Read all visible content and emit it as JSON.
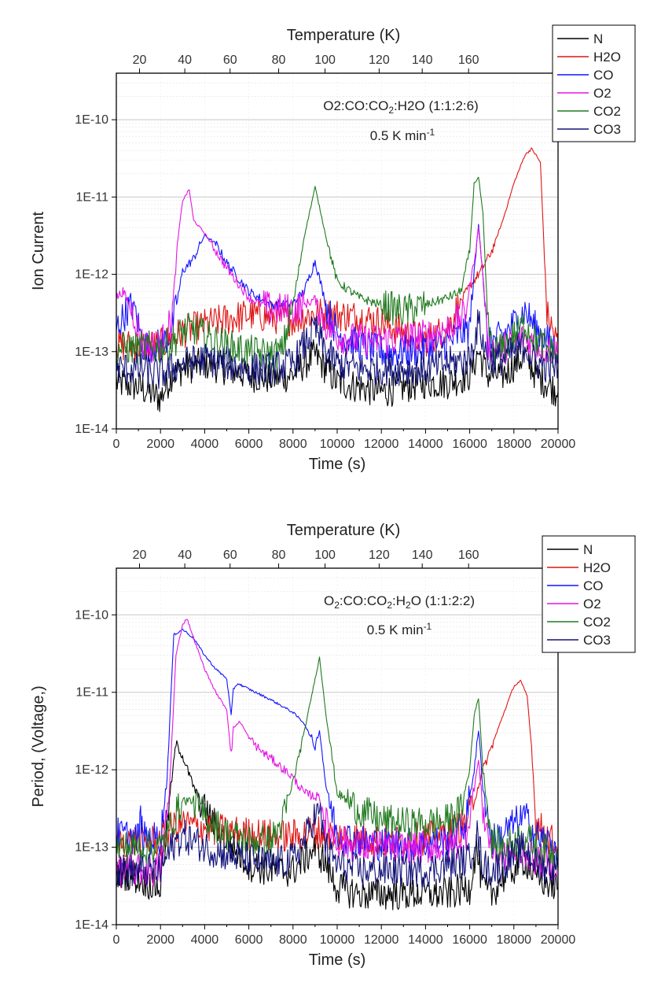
{
  "chart_data": [
    {
      "type": "line",
      "xlabel": "Time (s)",
      "ylabel": "Ion Current",
      "x2label": "Temperature (K)",
      "annotation_main": "O2:CO:CO",
      "annotation_sub": "2",
      "annotation_tail": ":H2O (1:1:2:6)",
      "rate_main": "0.5 K min",
      "rate_sup": "-1",
      "xlim": [
        0,
        20000
      ],
      "ylim": [
        1e-14,
        4e-10
      ],
      "yscale": "log",
      "grid": true,
      "legend_position": "top-right",
      "x_ticks": [
        "0",
        "2000",
        "4000",
        "6000",
        "8000",
        "10000",
        "12000",
        "14000",
        "16000",
        "18000",
        "20000"
      ],
      "x_tick_values": [
        0,
        2000,
        4000,
        6000,
        8000,
        10000,
        12000,
        14000,
        16000,
        18000,
        20000
      ],
      "y_ticks": [
        "1E-14",
        "1E-13",
        "1E-12",
        "1E-11",
        "1E-10"
      ],
      "y_tick_values": [
        1e-14,
        1e-13,
        1e-12,
        1e-11,
        1e-10
      ],
      "t_ticks": [
        "20",
        "40",
        "60",
        "80",
        "100",
        "120",
        "140",
        "160"
      ],
      "t_tick_time": [
        1050,
        3100,
        5150,
        7350,
        9450,
        11900,
        13850,
        15950
      ],
      "series": [
        {
          "name": "N",
          "color": "#000000",
          "x": [
            0,
            1000,
            2000,
            2500,
            3000,
            4000,
            5000,
            6000,
            7000,
            8000,
            8500,
            9000,
            9500,
            10000,
            11000,
            12000,
            13000,
            14000,
            15000,
            16000,
            16400,
            16800,
            17500,
            18500,
            19000,
            20000
          ],
          "y": [
            4e-14,
            3.5e-14,
            2.5e-14,
            5e-14,
            6e-14,
            7e-14,
            6e-14,
            5e-14,
            4.5e-14,
            5e-14,
            7e-14,
            9e-14,
            6e-14,
            4e-14,
            3.5e-14,
            3e-14,
            3.5e-14,
            4e-14,
            4e-14,
            5e-14,
            1e-13,
            5e-14,
            5e-14,
            9e-14,
            5e-14,
            3e-14
          ]
        },
        {
          "name": "H2O",
          "color": "#e01414",
          "x": [
            0,
            2000,
            3000,
            4000,
            5000,
            6000,
            7000,
            8000,
            9000,
            10000,
            11000,
            12000,
            13000,
            14000,
            15000,
            15500,
            16000,
            16500,
            17000,
            17500,
            18000,
            18500,
            18800,
            19000,
            19200,
            19500,
            20000
          ],
          "y": [
            1.2e-13,
            1.2e-13,
            1.8e-13,
            2.2e-13,
            2.6e-13,
            3e-13,
            2.8e-13,
            2.6e-13,
            3.1e-13,
            3e-13,
            2.8e-13,
            2.4e-13,
            1.8e-13,
            1.4e-13,
            2e-13,
            4e-13,
            7e-13,
            1.1e-12,
            2e-12,
            5e-12,
            1.5e-11,
            3.5e-11,
            4.2e-11,
            3.5e-11,
            2.8e-11,
            3e-13,
            1.2e-13
          ]
        },
        {
          "name": "CO",
          "color": "#1414ff",
          "x": [
            0,
            500,
            800,
            1200,
            2000,
            2500,
            3000,
            3500,
            4000,
            4500,
            5000,
            6000,
            7000,
            8000,
            8500,
            9000,
            9500,
            10000,
            11000,
            12000,
            13000,
            14000,
            15000,
            16000,
            16200,
            16400,
            16600,
            16800,
            17500,
            18500,
            19000,
            20000
          ],
          "y": [
            2e-13,
            3.5e-13,
            4e-13,
            1.2e-13,
            1.2e-13,
            1.8e-13,
            1.1e-12,
            1.6e-12,
            3.2e-12,
            2.5e-12,
            1.4e-12,
            6e-13,
            4e-13,
            4.2e-13,
            6e-13,
            1.5e-12,
            4e-13,
            1.7e-13,
            1.2e-13,
            1e-13,
            1e-13,
            1.1e-13,
            1.3e-13,
            2e-13,
            1e-12,
            4.5e-12,
            1e-12,
            1.2e-13,
            1.6e-13,
            3.4e-13,
            2e-13,
            1e-13
          ]
        },
        {
          "name": "O2",
          "color": "#e614e6",
          "x": [
            0,
            300,
            800,
            1200,
            2000,
            2500,
            2800,
            3000,
            3300,
            3500,
            4000,
            5000,
            6000,
            7000,
            8000,
            8500,
            9000,
            9500,
            10000,
            11000,
            12000,
            13000,
            14000,
            15000,
            15800,
            16200,
            16400,
            16600,
            16800,
            17500,
            18500,
            19000,
            20000
          ],
          "y": [
            5e-13,
            6e-13,
            3e-13,
            1.2e-13,
            1.2e-13,
            2.5e-13,
            3e-12,
            9e-12,
            1.25e-11,
            5e-12,
            3.4e-12,
            1.2e-12,
            5e-13,
            3.5e-13,
            3.5e-13,
            4e-13,
            4.8e-13,
            2.2e-13,
            1.6e-13,
            1.4e-13,
            1.4e-13,
            1.5e-13,
            1.6e-13,
            2e-13,
            3e-13,
            1.5e-12,
            4e-12,
            1e-12,
            1.2e-13,
            1.1e-13,
            1.5e-13,
            1.2e-13,
            1e-13
          ]
        },
        {
          "name": "CO2",
          "color": "#207a20",
          "x": [
            0,
            2000,
            2500,
            3000,
            3500,
            4000,
            5000,
            6000,
            7000,
            7500,
            8000,
            8500,
            9000,
            9500,
            10000,
            11000,
            12000,
            13000,
            14000,
            15000,
            15600,
            16000,
            16200,
            16400,
            16600,
            16800,
            17000,
            17500,
            18500,
            19000,
            20000
          ],
          "y": [
            1.1e-13,
            1.1e-13,
            1.3e-13,
            1.8e-13,
            2e-13,
            1.6e-13,
            1.2e-13,
            1e-13,
            9e-14,
            1e-13,
            4e-13,
            3e-12,
            1.35e-11,
            3e-12,
            8e-13,
            5e-13,
            4e-13,
            3.3e-13,
            4e-13,
            5e-13,
            6e-13,
            2e-12,
            1.5e-11,
            1.8e-11,
            6e-12,
            3e-13,
            1e-13,
            1.1e-13,
            2.3e-13,
            1.4e-13,
            9e-14
          ]
        },
        {
          "name": "CO3",
          "color": "#12127a",
          "x": [
            0,
            1000,
            2000,
            2500,
            3000,
            4000,
            5000,
            6000,
            7000,
            8000,
            8500,
            9000,
            9500,
            10000,
            11000,
            12000,
            13000,
            14000,
            15000,
            16000,
            16400,
            16800,
            17500,
            18500,
            19000,
            20000
          ],
          "y": [
            6e-14,
            6e-14,
            5e-14,
            6e-14,
            7e-14,
            8e-14,
            7e-14,
            6e-14,
            6e-14,
            7e-14,
            1.2e-13,
            2e-13,
            1e-13,
            7e-14,
            6e-14,
            6e-14,
            6e-14,
            6e-14,
            7e-14,
            8e-14,
            2.4e-13,
            8e-14,
            8e-14,
            1.2e-13,
            7e-14,
            6e-14
          ]
        }
      ]
    },
    {
      "type": "line",
      "xlabel": "Time (s)",
      "ylabel": "Period, (Voltage,)",
      "x2label": "Temperature (K)",
      "annotation_main": "O",
      "annotation_sub": "2",
      "annotation_tail": ":CO:CO",
      "annotation_sub2": "2",
      "annotation_tail2": ":H",
      "annotation_sub3": "2",
      "annotation_tail3": "O (1:1:2:2)",
      "rate_main": "0.5 K min",
      "rate_sup": "-1",
      "xlim": [
        0,
        20000
      ],
      "ylim": [
        1e-14,
        4e-10
      ],
      "yscale": "log",
      "grid": true,
      "legend_position": "top-right",
      "x_ticks": [
        "0",
        "2000",
        "4000",
        "6000",
        "8000",
        "10000",
        "12000",
        "14000",
        "16000",
        "18000",
        "20000"
      ],
      "x_tick_values": [
        0,
        2000,
        4000,
        6000,
        8000,
        10000,
        12000,
        14000,
        16000,
        18000,
        20000
      ],
      "y_ticks": [
        "1E-14",
        "1E-13",
        "1E-12",
        "1E-11",
        "1E-10"
      ],
      "y_tick_values": [
        1e-14,
        1e-13,
        1e-12,
        1e-11,
        1e-10
      ],
      "t_ticks": [
        "20",
        "40",
        "60",
        "80",
        "100",
        "120",
        "140",
        "160"
      ],
      "t_tick_time": [
        1050,
        3100,
        5150,
        7350,
        9450,
        11900,
        13850,
        15950
      ],
      "series": [
        {
          "name": "N",
          "color": "#000000",
          "x": [
            0,
            1000,
            2000,
            2400,
            2700,
            3000,
            3500,
            4000,
            5000,
            6000,
            7000,
            8000,
            8500,
            9000,
            9500,
            10000,
            11000,
            12000,
            13000,
            14000,
            15000,
            16000,
            16300,
            16600,
            17000,
            17500,
            18500,
            19000,
            20000
          ],
          "y": [
            5e-14,
            4e-14,
            3e-14,
            4e-13,
            2.2e-12,
            1.5e-12,
            6e-13,
            3e-13,
            1.2e-13,
            6e-14,
            5e-14,
            5e-14,
            7e-14,
            1e-13,
            6e-14,
            3e-14,
            2.5e-14,
            2.5e-14,
            2.5e-14,
            2.5e-14,
            2.5e-14,
            3e-14,
            1e-13,
            3e-14,
            2.5e-14,
            4e-14,
            7e-14,
            4e-14,
            3e-14
          ]
        },
        {
          "name": "H2O",
          "color": "#e01414",
          "x": [
            0,
            2000,
            2500,
            3000,
            4000,
            5000,
            6000,
            7000,
            8000,
            9000,
            10000,
            11000,
            12000,
            13000,
            14000,
            15000,
            15800,
            16200,
            16600,
            17000,
            17500,
            18000,
            18300,
            18600,
            18800,
            19000,
            20000
          ],
          "y": [
            1.2e-13,
            1.2e-13,
            1.8e-13,
            2e-13,
            1.8e-13,
            1.6e-13,
            1.5e-13,
            1.4e-13,
            1.4e-13,
            1.6e-13,
            1.4e-13,
            1.3e-13,
            1.2e-13,
            1.2e-13,
            1.3e-13,
            1.5e-13,
            2e-13,
            4e-13,
            1e-12,
            2e-12,
            5e-12,
            1.2e-11,
            1.4e-11,
            9e-12,
            2e-12,
            2e-13,
            1e-13
          ]
        },
        {
          "name": "CO",
          "color": "#1414ff",
          "x": [
            0,
            1000,
            1100,
            1200,
            2000,
            2300,
            2600,
            3000,
            3500,
            4000,
            4500,
            5000,
            5200,
            5300,
            5500,
            6000,
            7000,
            8000,
            8500,
            9000,
            9200,
            9500,
            10000,
            11000,
            12000,
            13000,
            14000,
            15000,
            15800,
            16200,
            16400,
            16600,
            17000,
            17500,
            18000,
            18500,
            19000,
            20000
          ],
          "y": [
            1.5e-13,
            1.3e-13,
            2.5e-13,
            1.3e-13,
            1.3e-13,
            8e-13,
            5.5e-11,
            6.5e-11,
            5e-11,
            3e-11,
            2e-11,
            1.5e-11,
            5e-12,
            1.1e-11,
            1.3e-11,
            1.1e-11,
            8e-12,
            5.5e-12,
            4e-12,
            2e-12,
            3.2e-12,
            6e-13,
            1.5e-13,
            1.2e-13,
            1.1e-13,
            1.1e-13,
            1.1e-13,
            1.2e-13,
            2e-13,
            1e-12,
            3.2e-12,
            6e-13,
            1.2e-13,
            1.5e-13,
            2e-13,
            2.5e-13,
            1.4e-13,
            1e-13
          ]
        },
        {
          "name": "O2",
          "color": "#e614e6",
          "x": [
            0,
            1000,
            2000,
            2400,
            2700,
            3000,
            3200,
            3500,
            4000,
            4500,
            5000,
            5200,
            5300,
            5600,
            6000,
            6500,
            7000,
            8000,
            8500,
            9000,
            9200,
            9500,
            10000,
            11000,
            12000,
            13000,
            14000,
            15000,
            15800,
            16200,
            16400,
            16600,
            17000,
            17500,
            18500,
            19000,
            20000
          ],
          "y": [
            5e-14,
            5e-14,
            5e-14,
            5e-13,
            3e-11,
            7.5e-11,
            9e-11,
            5e-11,
            2e-11,
            1e-11,
            6e-12,
            1.6e-12,
            3.5e-12,
            4.2e-12,
            2.6e-12,
            1.8e-12,
            1.4e-12,
            8e-13,
            5e-13,
            4.5e-13,
            4.5e-13,
            2e-13,
            1.2e-13,
            1e-13,
            1e-13,
            1e-13,
            1e-13,
            1e-13,
            1.3e-13,
            6e-13,
            1.3e-12,
            3e-13,
            9e-14,
            8e-14,
            9e-14,
            7e-14,
            6e-14
          ]
        },
        {
          "name": "CO2",
          "color": "#207a20",
          "x": [
            0,
            2000,
            2500,
            3000,
            3500,
            4000,
            5000,
            6000,
            7000,
            7500,
            8000,
            8500,
            9000,
            9200,
            9500,
            10000,
            11000,
            12000,
            13000,
            14000,
            15000,
            15600,
            16000,
            16200,
            16400,
            16600,
            17000,
            17500,
            18500,
            19000,
            20000
          ],
          "y": [
            1e-13,
            1e-13,
            2e-13,
            4e-13,
            4e-13,
            2.5e-13,
            1.5e-13,
            1.2e-13,
            1.2e-13,
            2e-13,
            7e-13,
            3e-12,
            1.5e-11,
            2.8e-11,
            5e-12,
            5e-13,
            3e-13,
            2.2e-13,
            2e-13,
            2e-13,
            2.2e-13,
            3e-13,
            1e-12,
            5e-12,
            8.5e-12,
            1e-12,
            1.2e-13,
            1e-13,
            1.4e-13,
            1e-13,
            8e-14
          ]
        },
        {
          "name": "CO3",
          "color": "#12127a",
          "x": [
            0,
            1000,
            2000,
            2500,
            3000,
            3500,
            4000,
            5000,
            6000,
            7000,
            8000,
            8500,
            9000,
            9200,
            9500,
            10000,
            11000,
            12000,
            13000,
            14000,
            15000,
            16000,
            16300,
            16600,
            17000,
            17500,
            18500,
            19000,
            20000
          ],
          "y": [
            5e-14,
            5e-14,
            5e-14,
            1e-13,
            1.4e-13,
            1.2e-13,
            1e-13,
            8e-14,
            7e-14,
            6e-14,
            7e-14,
            1.2e-13,
            2.6e-13,
            2.8e-13,
            1e-13,
            6e-14,
            5e-14,
            5e-14,
            5e-14,
            5e-14,
            6e-14,
            7e-14,
            1.6e-13,
            6e-14,
            5e-14,
            6e-14,
            1e-13,
            6e-14,
            5e-14
          ]
        }
      ]
    }
  ]
}
